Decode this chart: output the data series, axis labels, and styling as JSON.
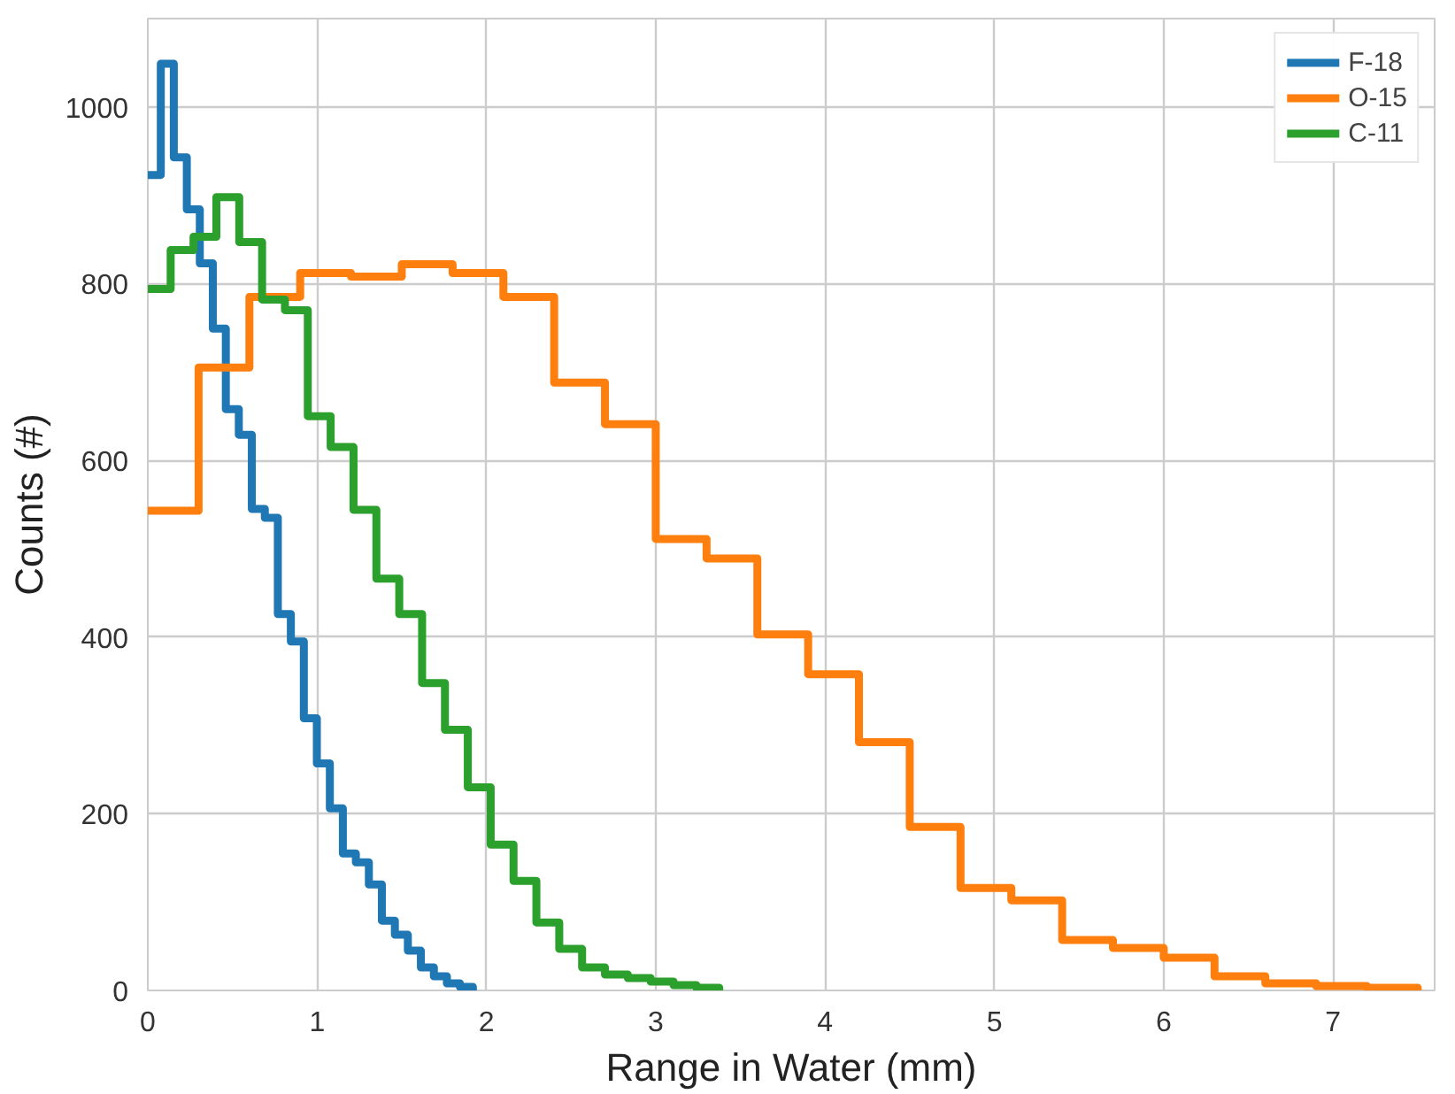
{
  "chart_data": {
    "type": "step",
    "xlabel": "Range in Water (mm)",
    "ylabel": "Counts (#)",
    "xlim": [
      0,
      7.6
    ],
    "ylim": [
      0,
      1100
    ],
    "xticks": [
      0,
      1,
      2,
      3,
      4,
      5,
      6,
      7
    ],
    "yticks": [
      0,
      200,
      400,
      600,
      800,
      1000
    ],
    "grid": true,
    "legend": "top right",
    "series": [
      {
        "name": "F-18",
        "color": "#1f77b4",
        "x": [
          0,
          0.0768,
          0.1536,
          0.2304,
          0.3072,
          0.384,
          0.4608,
          0.5376,
          0.6144,
          0.6912,
          0.768,
          0.8448,
          0.9216,
          0.9984,
          1.0752,
          1.152,
          1.2288,
          1.3056,
          1.3824,
          1.4592,
          1.536,
          1.6128,
          1.6896,
          1.7664,
          1.8432,
          1.92
        ],
        "values": [
          923,
          1049,
          943,
          884,
          823,
          749,
          658,
          629,
          545,
          535,
          426,
          395,
          308,
          257,
          206,
          155,
          145,
          120,
          79,
          63,
          45,
          26,
          16,
          8,
          4,
          0
        ]
      },
      {
        "name": "O-15",
        "color": "#ff7f0e",
        "x": [
          0,
          0.3,
          0.6,
          0.9,
          1.2,
          1.5,
          1.8,
          2.1,
          2.4,
          2.7,
          3.0,
          3.3,
          3.6,
          3.9,
          4.2,
          4.5,
          4.8,
          5.1,
          5.4,
          5.7,
          6.0,
          6.3,
          6.6,
          6.9,
          7.2,
          7.5
        ],
        "values": [
          543,
          705,
          785,
          812,
          808,
          822,
          812,
          785,
          688,
          641,
          511,
          489,
          403,
          358,
          281,
          185,
          116,
          102,
          57,
          48,
          37,
          16,
          8,
          5,
          3,
          0
        ]
      },
      {
        "name": "C-11",
        "color": "#2ca02c",
        "x": [
          0,
          0.135,
          0.27,
          0.405,
          0.54,
          0.675,
          0.81,
          0.945,
          1.08,
          1.215,
          1.35,
          1.485,
          1.62,
          1.755,
          1.89,
          2.025,
          2.16,
          2.295,
          2.43,
          2.565,
          2.7,
          2.835,
          2.97,
          3.105,
          3.24,
          3.375
        ],
        "values": [
          794,
          838,
          853,
          898,
          847,
          782,
          770,
          650,
          615,
          544,
          466,
          426,
          348,
          295,
          230,
          165,
          124,
          77,
          47,
          26,
          18,
          14,
          10,
          6,
          3,
          0
        ]
      }
    ]
  }
}
